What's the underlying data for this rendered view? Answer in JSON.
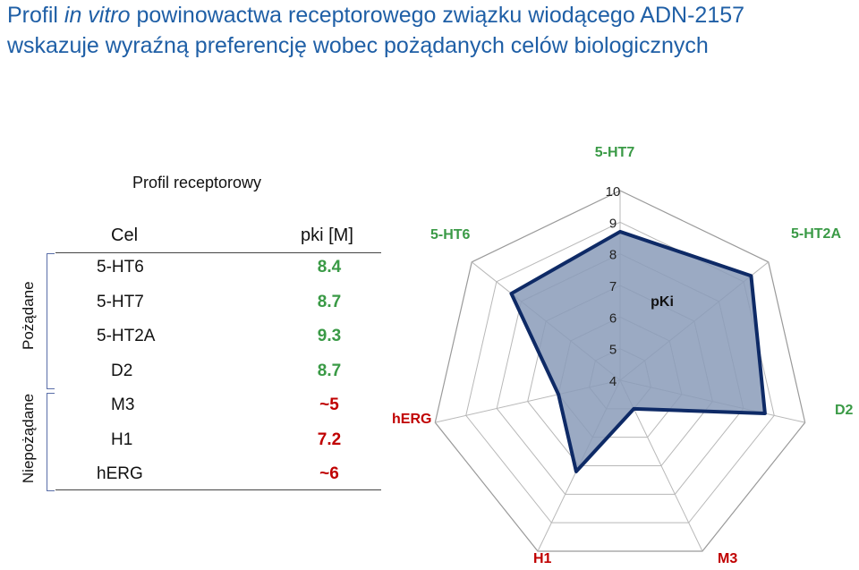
{
  "title": {
    "part1": "Profil ",
    "part2": "in vitro",
    "part3": " powinowactwa receptorowego związku wiodącego ADN-2157",
    "line2": "wskazuje wyraźną preferencję wobec pożądanych celów biologicznych"
  },
  "table": {
    "subtitle": "Profil receptorowy",
    "headers": [
      "Cel",
      "pki [M]"
    ],
    "rows": [
      {
        "target": "5-HT6",
        "pki": "8.4"
      },
      {
        "target": "5-HT7",
        "pki": "8.7"
      },
      {
        "target": "5-HT2A",
        "pki": "9.3"
      },
      {
        "target": "D2",
        "pki": "8.7"
      },
      {
        "target": "M3",
        "pki": "~5"
      },
      {
        "target": "H1",
        "pki": "7.2"
      },
      {
        "target": "hERG",
        "pki": "~6"
      }
    ],
    "group_labels": {
      "desired": "Pożądane",
      "undesired": "Niepożądane"
    }
  },
  "colors": {
    "desired": "#3a9a46",
    "undesired": "#c00000",
    "title": "#1f5fa6",
    "fill": "#8a9bb8",
    "stroke": "#0e2a66"
  },
  "chart_data": {
    "type": "radar",
    "categories": [
      "5-HT7",
      "5-HT2A",
      "D2",
      "M3",
      "H1",
      "hERG",
      "5-HT6"
    ],
    "series": [
      {
        "name": "pKi",
        "values": [
          8.7,
          9.3,
          8.7,
          5,
          7.2,
          6,
          8.4
        ]
      }
    ],
    "rlim": [
      4,
      10
    ],
    "ticks": [
      "4",
      "5",
      "6",
      "7",
      "8",
      "9",
      "10"
    ],
    "series_label": "pKi",
    "grid": true
  }
}
